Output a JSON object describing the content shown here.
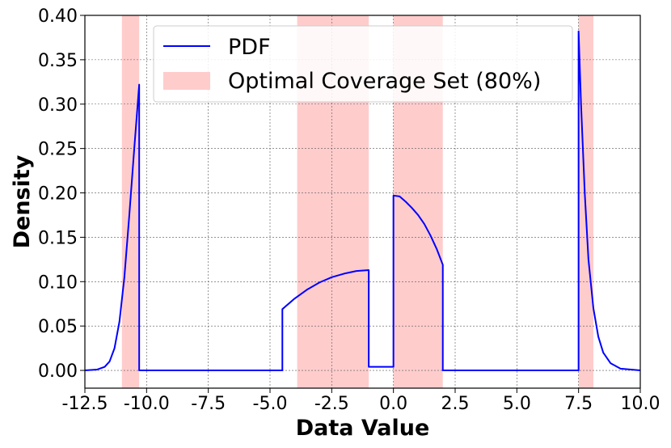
{
  "chart_data": {
    "type": "line",
    "xlabel": "Data Value",
    "ylabel": "Density",
    "xlim": [
      -12.5,
      10.0
    ],
    "ylim": [
      -0.02,
      0.4
    ],
    "grid": true,
    "legend_position": "top-center",
    "x_ticks": [
      "-12.5",
      "-10.0",
      "-7.5",
      "-5.0",
      "-2.5",
      "0.0",
      "2.5",
      "5.0",
      "7.5",
      "10.0"
    ],
    "y_ticks": [
      "0.00",
      "0.05",
      "0.10",
      "0.15",
      "0.20",
      "0.25",
      "0.30",
      "0.35",
      "0.40"
    ],
    "series": [
      {
        "name": "PDF",
        "color": "#0000ff",
        "points": [
          [
            -12.5,
            0.0
          ],
          [
            -12.0,
            0.001
          ],
          [
            -11.7,
            0.004
          ],
          [
            -11.5,
            0.01
          ],
          [
            -11.3,
            0.025
          ],
          [
            -11.1,
            0.055
          ],
          [
            -10.9,
            0.105
          ],
          [
            -10.7,
            0.175
          ],
          [
            -10.5,
            0.25
          ],
          [
            -10.3,
            0.322
          ],
          [
            -10.3,
            0.0
          ],
          [
            -4.5,
            0.0
          ],
          [
            -4.5,
            0.069
          ],
          [
            -4.0,
            0.081
          ],
          [
            -3.5,
            0.091
          ],
          [
            -3.0,
            0.099
          ],
          [
            -2.5,
            0.105
          ],
          [
            -2.0,
            0.109
          ],
          [
            -1.5,
            0.112
          ],
          [
            -1.0,
            0.113
          ],
          [
            -1.0,
            0.004
          ],
          [
            0.0,
            0.004
          ],
          [
            0.0,
            0.197
          ],
          [
            0.25,
            0.196
          ],
          [
            0.5,
            0.19
          ],
          [
            0.75,
            0.183
          ],
          [
            1.0,
            0.175
          ],
          [
            1.25,
            0.165
          ],
          [
            1.5,
            0.152
          ],
          [
            1.75,
            0.137
          ],
          [
            2.0,
            0.119
          ],
          [
            2.0,
            0.0
          ],
          [
            7.5,
            0.0
          ],
          [
            7.5,
            0.382
          ],
          [
            7.6,
            0.3
          ],
          [
            7.75,
            0.2
          ],
          [
            7.9,
            0.125
          ],
          [
            8.1,
            0.07
          ],
          [
            8.3,
            0.038
          ],
          [
            8.5,
            0.02
          ],
          [
            8.8,
            0.008
          ],
          [
            9.2,
            0.002
          ],
          [
            10.0,
            0.0
          ]
        ]
      }
    ],
    "coverage_regions": {
      "name": "Optimal Coverage Set (80%)",
      "color": "#ffcccc",
      "intervals": [
        [
          -11.0,
          -10.3
        ],
        [
          -3.9,
          -1.0
        ],
        [
          0.0,
          2.0
        ],
        [
          7.5,
          8.1
        ]
      ]
    }
  }
}
